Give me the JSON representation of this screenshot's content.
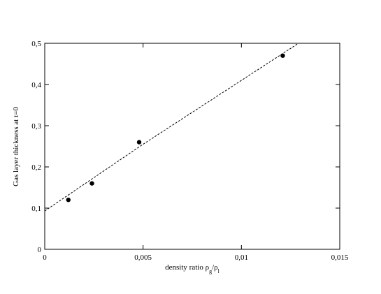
{
  "chart_data": {
    "type": "scatter",
    "xlabel": [
      "density ratio ρ",
      "g",
      "/ρ",
      "l"
    ],
    "ylabel": "Gas layer thickness at t=0",
    "xlim": [
      0,
      0.015
    ],
    "ylim": [
      0,
      0.5
    ],
    "xticks": [
      0,
      {
        "value": 0.005,
        "label": "0,005"
      },
      {
        "value": 0.01,
        "label": "0,01"
      },
      {
        "value": 0.015,
        "label": "0,015"
      }
    ],
    "yticks": [
      0,
      {
        "value": 0.1,
        "label": "0,1"
      },
      {
        "value": 0.2,
        "label": "0,2"
      },
      {
        "value": 0.3,
        "label": "0,3"
      },
      {
        "value": 0.4,
        "label": "0,4"
      },
      {
        "value": 0.5,
        "label": "0,5"
      }
    ],
    "series": [
      {
        "kind": "points",
        "color": "#000000",
        "x": [
          0.0012,
          0.0024,
          0.0048,
          0.0121
        ],
        "values": [
          0.12,
          0.16,
          0.26,
          0.47
        ]
      },
      {
        "kind": "line",
        "color": "#000000",
        "dashed": true,
        "x": [
          0,
          0.005,
          0.01,
          0.0129
        ],
        "values": [
          0.093,
          0.255,
          0.41,
          0.5
        ]
      }
    ]
  }
}
